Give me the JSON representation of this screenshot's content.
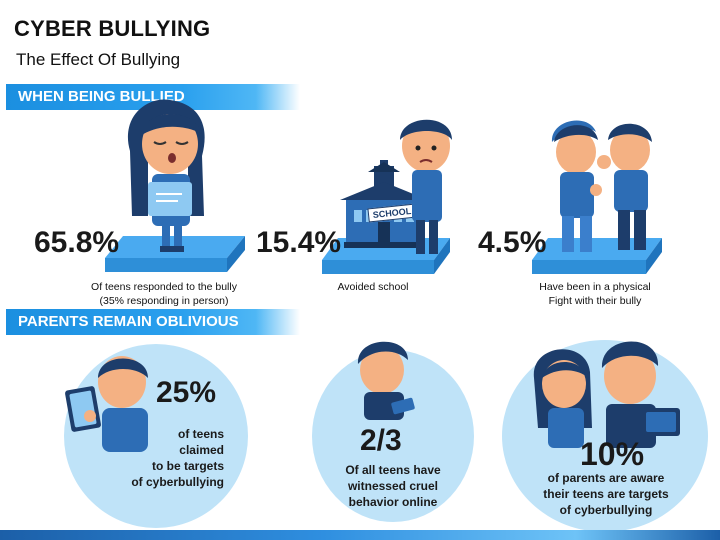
{
  "header": {
    "title": "CYBER BULLYING",
    "subtitle": "The Effect Of Bullying"
  },
  "sections": {
    "being_bullied": "WHEN BEING BULLIED",
    "parents": "PARENTS REMAIN OBLIVIOUS"
  },
  "bullied_stats": [
    {
      "value": "65.8%",
      "caption_line1": "Of teens responded  to the bully",
      "caption_line2": "(35% responding in person)"
    },
    {
      "value": "15.4%",
      "caption_line1": "Avoided school",
      "caption_line2": ""
    },
    {
      "value": "4.5%",
      "caption_line1": "Have been in a physical",
      "caption_line2": "Fight with their bully"
    }
  ],
  "school_sign": "SCHOOL",
  "parent_stats": [
    {
      "value": "25%",
      "line1": "of teens",
      "line2": "claimed",
      "line3": "to be targets",
      "line4": "of cyberbullying"
    },
    {
      "value": "2/3",
      "line1": "Of all teens have",
      "line2": "witnessed cruel",
      "line3": "behavior online"
    },
    {
      "value": "10%",
      "line1": "of parents are aware",
      "line2": "their teens are targets",
      "line3": "of cyberbullying"
    }
  ],
  "colors": {
    "accent": "#1b8fe0",
    "platform": "#3ba2e8",
    "circle": "#bfe3f8",
    "navy": "#1d3d6b"
  }
}
